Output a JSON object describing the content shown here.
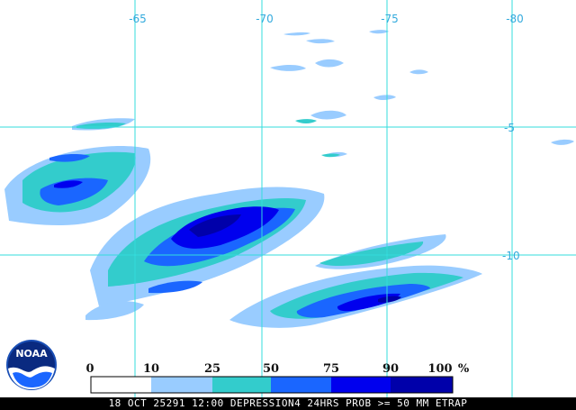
{
  "map": {
    "longitude_labels": [
      "-65",
      "-70",
      "-75",
      "-80"
    ],
    "latitude_labels": [
      "-5",
      "-10"
    ]
  },
  "legend": {
    "values": [
      "0",
      "10",
      "25",
      "50",
      "75",
      "90",
      "100"
    ],
    "unit": "%",
    "colors": [
      "#ffffff",
      "#99ccff",
      "#33cccc",
      "#1a66ff",
      "#0000ee",
      "#0000aa"
    ]
  },
  "logo": {
    "text": "NOAA"
  },
  "caption": "18 OCT 25291 12:00 DEPRESSION4 24HRS PROB >= 50 MM ETRAP"
}
